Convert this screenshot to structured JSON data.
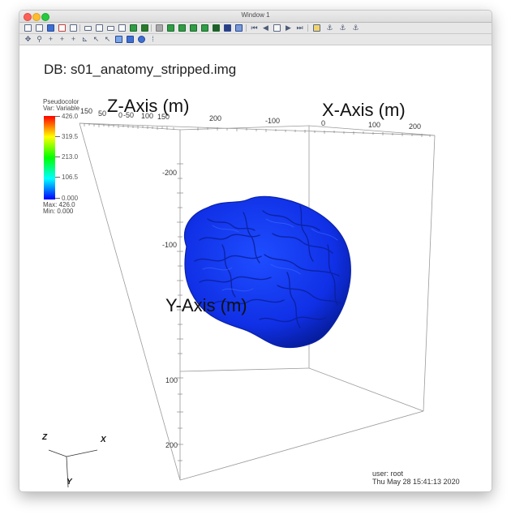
{
  "window": {
    "title": "Window 1"
  },
  "toolbar": {
    "row1_icons": [
      "clear-window-icon",
      "open-window-icon",
      "copy-window-icon",
      "delete-window-icon",
      "blank-window-icon",
      "layout-1x2-icon",
      "layout-2x2-icon",
      "layout-single-icon",
      "layout-grid-icon",
      "add-plot-icon",
      "draw-plots-icon",
      "save-image-icon",
      "plot-green-1-icon",
      "plot-green-2-icon",
      "plot-green-3-icon",
      "plot-green-4-icon",
      "plot-dark-icon",
      "plot-chart-icon",
      "plot-gear-icon",
      "first-frame-icon",
      "prev-frame-icon",
      "stop-icon",
      "play-icon",
      "next-frame-icon",
      "tools-icon",
      "lock-icon",
      "lock-time-icon",
      "lock-tools-icon"
    ],
    "row2_icons": [
      "navigate-icon",
      "zoom-icon",
      "zoom-in-icon",
      "zoom-out-icon",
      "pick-icon",
      "line-out-icon",
      "line-icon",
      "cursor-icon",
      "plane-icon",
      "box-icon",
      "sphere-icon",
      "more-icon"
    ]
  },
  "viewport": {
    "db_label": "DB: s01_anatomy_stripped.img",
    "legend": {
      "plot_type": "Pseudocolor",
      "variable": "Var: Variable",
      "ticks": [
        "426.0",
        "319.5",
        "213.0",
        "106.5",
        "0.000"
      ],
      "max": "Max:  426.0",
      "min": "Min:  0.000",
      "colors": [
        "#ff0000",
        "#ffff00",
        "#00ff00",
        "#00ffff",
        "#0000ff"
      ]
    },
    "axes": {
      "z_title": "Z-Axis (m)",
      "x_title": "X-Axis (m)",
      "y_title": "Y-Axis (m)",
      "z_ticks": [
        "150",
        "100",
        "50",
        "0",
        "-50",
        "100",
        "150"
      ],
      "x_top_ticks": [
        "200",
        "-100",
        "0",
        "100",
        "200"
      ],
      "y_ticks": [
        "-200",
        "-100",
        "100",
        "200"
      ]
    },
    "triad": {
      "z": "Z",
      "x": "X",
      "y": "Y"
    },
    "user_line": "user: root",
    "date_line": "Thu May 28 15:41:13 2020",
    "surface_color": "#1030e6"
  }
}
